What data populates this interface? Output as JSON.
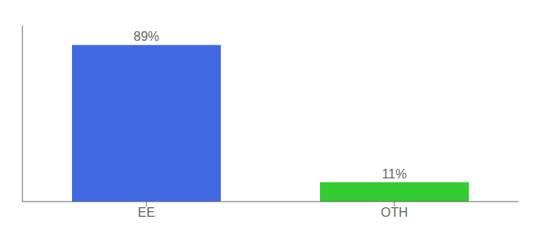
{
  "chart_data": {
    "type": "bar",
    "categories": [
      "EE",
      "OTH"
    ],
    "values": [
      89,
      11
    ],
    "value_labels": [
      "89%",
      "11%"
    ],
    "colors": [
      "#4169e1",
      "#33cc33"
    ],
    "ylim": [
      0,
      100
    ],
    "tick_labels": "x",
    "data_labels": true
  }
}
